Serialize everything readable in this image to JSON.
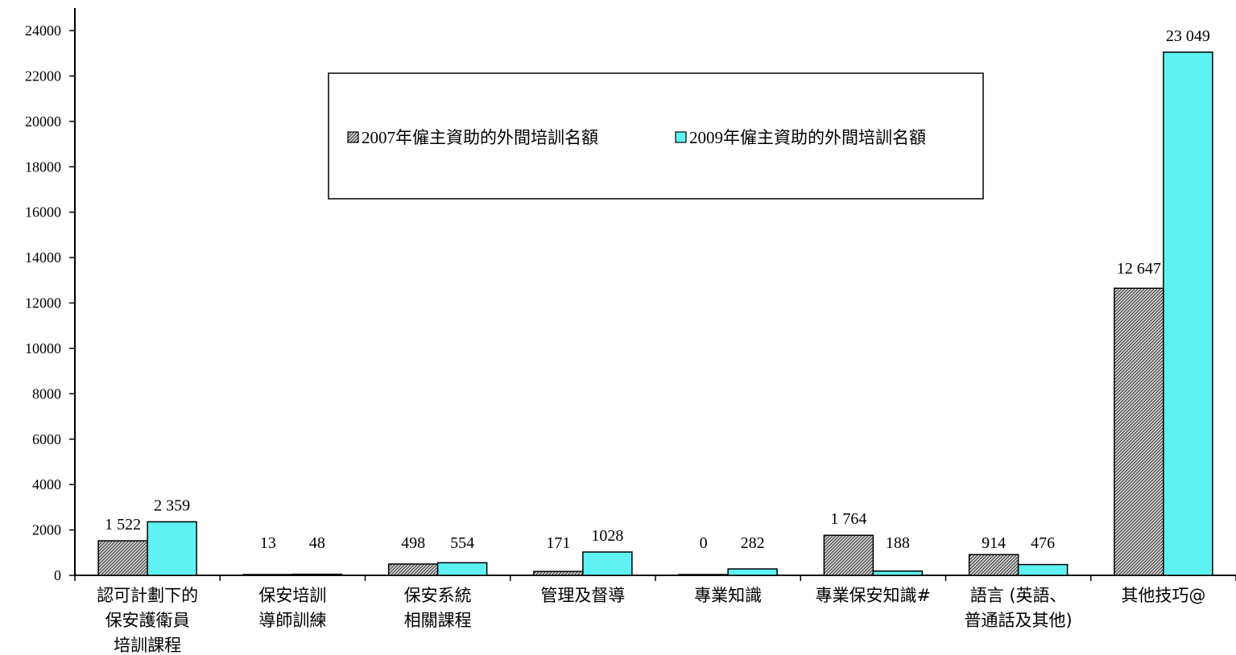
{
  "chart_data": {
    "type": "bar",
    "categories": [
      [
        "認可計劃下的",
        "保安護衛員",
        "培訓課程"
      ],
      [
        "保安培訓",
        "導師訓練"
      ],
      [
        "保安系統",
        "相關課程"
      ],
      [
        "管理及督導"
      ],
      [
        "專業知識"
      ],
      [
        "專業保安知識#"
      ],
      [
        "語言 (英語、",
        "普通話及其他)"
      ],
      [
        "其他技巧@"
      ]
    ],
    "series": [
      {
        "name": "2007年僱主資助的外間培訓名額",
        "values": [
          1522,
          13,
          498,
          171,
          0,
          1764,
          914,
          12647
        ],
        "labels": [
          "1 522",
          "13",
          "498",
          "171",
          "0",
          "1 764",
          "914",
          "12 647"
        ],
        "color": "#8c8c8c",
        "pattern": "hatched"
      },
      {
        "name": "2009年僱主資助的外間培訓名額",
        "values": [
          2359,
          48,
          554,
          1028,
          282,
          188,
          476,
          23049
        ],
        "labels": [
          "2 359",
          "48",
          "554",
          "1028",
          "282",
          "188",
          "476",
          "23 049"
        ],
        "color": "#5ff2f2",
        "pattern": "solid"
      }
    ],
    "ylim": [
      0,
      24000
    ],
    "yticks": [
      0,
      2000,
      4000,
      6000,
      8000,
      10000,
      12000,
      14000,
      16000,
      18000,
      20000,
      22000,
      24000
    ],
    "grid": false,
    "legend_position": "top-center"
  }
}
